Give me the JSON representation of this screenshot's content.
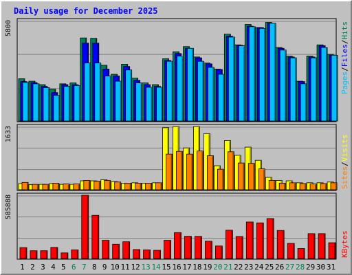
{
  "chart_data": {
    "type": "bar",
    "title": "Daily usage for December 2025",
    "categories": [
      "1",
      "2",
      "3",
      "4",
      "5",
      "6",
      "7",
      "8",
      "9",
      "10",
      "11",
      "12",
      "13",
      "14",
      "15",
      "16",
      "17",
      "18",
      "19",
      "20",
      "21",
      "22",
      "23",
      "24",
      "25",
      "26",
      "27",
      "28",
      "29",
      "30",
      "31"
    ],
    "weekend_days": [
      "6",
      "7",
      "13",
      "14",
      "20",
      "21",
      "27",
      "28"
    ],
    "panels": [
      {
        "name": "hits-files-pages",
        "ymax_label": "5800",
        "ymax": 5800,
        "series": [
          {
            "name": "Hits",
            "color": "#00805c",
            "values": [
              2440,
              2300,
              2100,
              1840,
              2150,
              2200,
              4800,
              4780,
              3220,
              2700,
              3280,
              2480,
              2200,
              2100,
              3600,
              4000,
              4300,
              3700,
              3350,
              3000,
              5020,
              4400,
              5580,
              5400,
              5700,
              4250,
              3750,
              2300,
              3750,
              4400,
              3850
            ]
          },
          {
            "name": "Files",
            "color": "#0000ff",
            "values": [
              2280,
              2220,
              2000,
              1640,
              2100,
              2100,
              4500,
              4500,
              3000,
              2600,
              3150,
              2350,
              2100,
              2000,
              3500,
              3900,
              4200,
              3650,
              3300,
              2980,
              4900,
              4380,
              5480,
              5400,
              5650,
              4200,
              3700,
              2280,
              3700,
              4350,
              3800
            ]
          },
          {
            "name": "Pages",
            "color": "#00c0ff",
            "values": [
              2230,
              2150,
              1930,
              1480,
              2000,
              2050,
              3350,
              3350,
              2600,
              2300,
              2950,
              2200,
              1950,
              1950,
              3450,
              3750,
              4200,
              3450,
              3100,
              2700,
              4850,
              4350,
              5450,
              5350,
              5650,
              4100,
              3650,
              2150,
              3650,
              4250,
              3800
            ]
          }
        ]
      },
      {
        "name": "visits-sites",
        "ymax_label": "1633",
        "ymax": 1633,
        "series": [
          {
            "name": "Visits",
            "color": "#ffff00",
            "values": [
              160,
              130,
              140,
              160,
              140,
              140,
              230,
              230,
              260,
              210,
              170,
              180,
              170,
              180,
              1600,
              1630,
              1080,
              1630,
              1450,
              620,
              1270,
              890,
              1100,
              760,
              320,
              240,
              230,
              180,
              180,
              180,
              200
            ]
          },
          {
            "name": "Sites",
            "color": "#ff8000",
            "values": [
              190,
              140,
              140,
              170,
              150,
              150,
              240,
              220,
              240,
              200,
              170,
              170,
              170,
              180,
              920,
              990,
              920,
              1000,
              880,
              530,
              980,
              690,
              680,
              540,
              240,
              170,
              180,
              160,
              150,
              160,
              180
            ]
          }
        ]
      },
      {
        "name": "kbytes",
        "ymax_label": "585888",
        "ymax": 585888,
        "series": [
          {
            "name": "KBytes",
            "color": "#ff0000",
            "values": [
              101000,
              72000,
              72000,
              103000,
              52000,
              80000,
              585888,
              400000,
              168000,
              132000,
              155000,
              83000,
              80000,
              76000,
              168000,
              240000,
              206000,
              205000,
              160000,
              116000,
              262000,
              204000,
              338000,
              330000,
              370000,
              260000,
              140000,
              92000,
              230000,
              230000,
              146000
            ]
          }
        ]
      }
    ],
    "legend": {
      "top": [
        {
          "text": "Pages",
          "color": "#00c0ff"
        },
        {
          "text": "/",
          "color": "#000000"
        },
        {
          "text": "Files",
          "color": "#0000ff"
        },
        {
          "text": "/",
          "color": "#000000"
        },
        {
          "text": "Hits",
          "color": "#00805c"
        }
      ],
      "middle": [
        {
          "text": "Sites",
          "color": "#ff8000"
        },
        {
          "text": "/",
          "color": "#000000"
        },
        {
          "text": "Visits",
          "color": "#ffff00"
        }
      ],
      "bottom": [
        {
          "text": "KBytes",
          "color": "#ff0000"
        }
      ]
    },
    "colors": {
      "background": "#c0c0c0",
      "title": "#0000ff",
      "axis_text": "#000000",
      "weekend_text": "#00805c",
      "gridline": "#808080"
    }
  }
}
